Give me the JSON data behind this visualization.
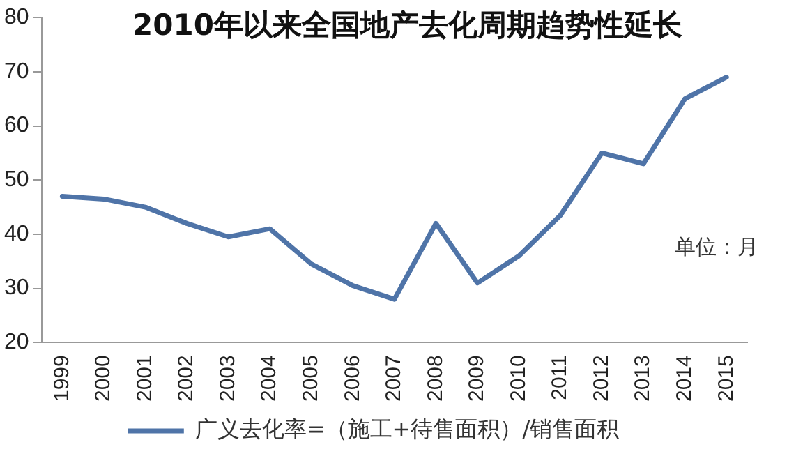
{
  "chart_data": {
    "type": "line",
    "title": "2010年以来全国地产去化周期趋势性延长",
    "categories": [
      "1999",
      "2000",
      "2001",
      "2002",
      "2003",
      "2004",
      "2005",
      "2006",
      "2007",
      "2008",
      "2009",
      "2010",
      "2011",
      "2012",
      "2013",
      "2014",
      "2015"
    ],
    "series": [
      {
        "name": "广义去化率=（施工+待售面积）/销售面积",
        "color": "#4f74a8",
        "values": [
          47,
          46.5,
          45,
          42,
          39.5,
          41,
          34.5,
          30.5,
          28,
          42,
          31,
          36,
          43.5,
          55,
          53,
          65,
          69
        ]
      }
    ],
    "ylim": [
      20,
      80
    ],
    "yticks": [
      20,
      30,
      40,
      50,
      60,
      70,
      80
    ],
    "grid": false,
    "legend": "bottom",
    "marker": "none",
    "line_style": "solid",
    "annotations": [
      "单位：月"
    ]
  }
}
